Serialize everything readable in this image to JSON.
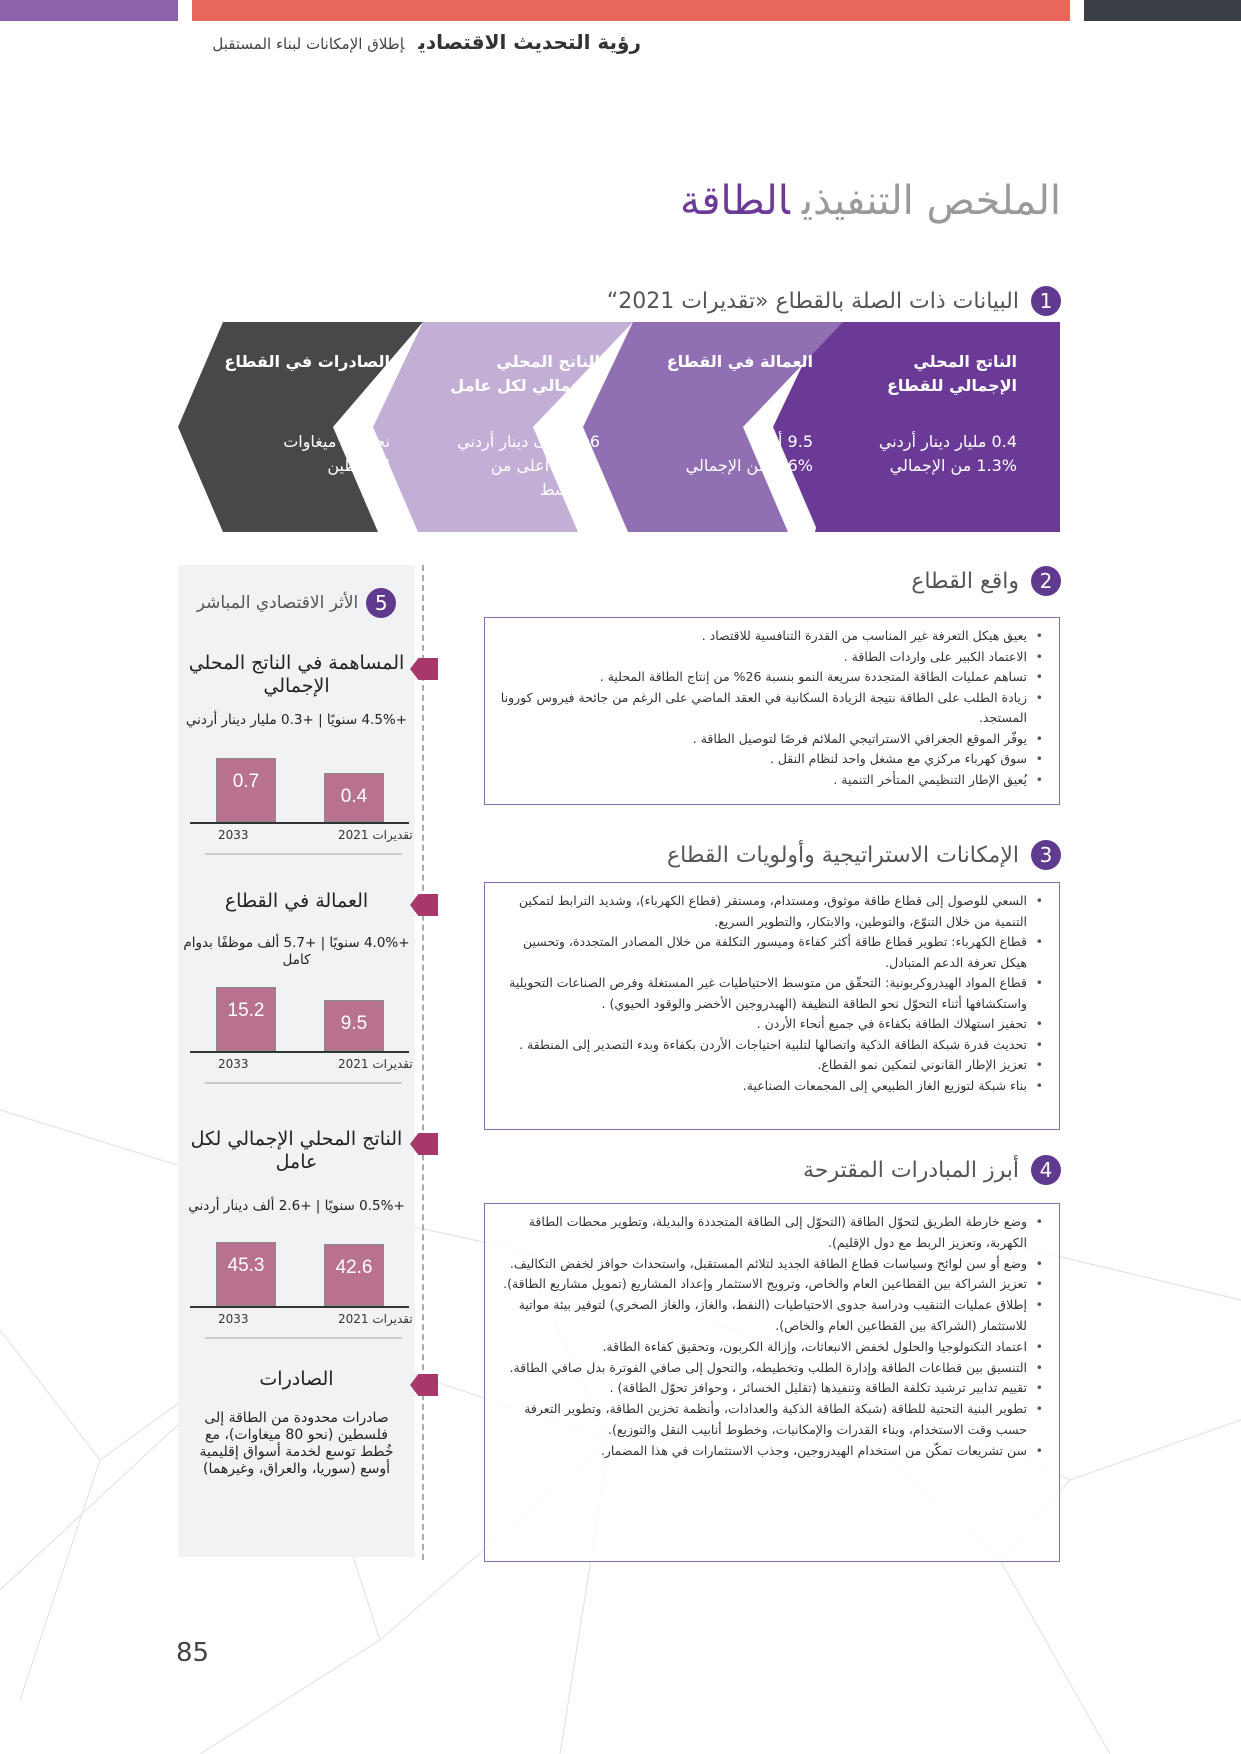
{
  "header": {
    "brand": "رؤية التحديث الاقتصادي",
    "tagline": "إطلاق الإمكانات لبناء المستقبل"
  },
  "colors": {
    "purple": "#6b3a96",
    "mid_purple": "#8e6bb0",
    "light_purple": "#c3aed6",
    "dark": "#48484a",
    "coral": "#e8675a",
    "bar": "#b8728f",
    "ribbon": "#a8386a"
  },
  "title": {
    "part1": "الملخص التنفيذي",
    "part2": "الطاقة"
  },
  "section1": {
    "num": "1",
    "heading": "البيانات ذات الصلة بالقطاع «تقديرات 2021“",
    "cards": [
      {
        "title": "الناتج المحلي الإجمالي للقطاع",
        "line1": "0.4 مليار دينار أردني",
        "line2": "1.3% من الإجمالي"
      },
      {
        "title": "العمالة في القطاع",
        "line1": "9.5 ألف",
        "line2": "0.6% من الإجمالي"
      },
      {
        "title": "الناتج المحلي الإجمالي لكل عامل",
        "line1": "42.6 ألف دينار أردني",
        "line2": "125% أعلى من المتوسط"
      },
      {
        "title": "الصادرات في القطاع",
        "line1": "نحو 80 ميغاوات لفلسطين",
        "line2": ""
      }
    ]
  },
  "section2": {
    "num": "2",
    "heading": "واقع القطاع",
    "items": [
      "يعيق هيكل التعرفة غير المناسب من القدرة التنافسية للاقتصاد .",
      "الاعتماد الكبير على واردات الطاقة .",
      "تساهم عمليات الطاقة المتجددة سريعة النمو بنسبة 26% من إنتاج الطاقة المحلية .",
      "زيادة الطلب على الطاقة نتيجة الزيادة السكانية في العقد الماضي على الرغم من جائحة فيروس كورونا المستجد.",
      "يوفّر الموقع الجغرافي الاستراتيجي الملائم فرصًا لتوصيل الطاقة .",
      "سوق كهرباء مركزي مع مشغل واحد لنظام النقل .",
      "يُعيق الإطار التنظيمي المتأخر التنمية ."
    ]
  },
  "section3": {
    "num": "3",
    "heading": "الإمكانات الاستراتيجية وأولويات القطاع",
    "items": [
      "السعي للوصول إلى قطاع طاقة موثوق، ومستدام، ومستقر (قطاع الكهرباء)، وشديد الترابط لتمكين التنمية من خلال التنوّع، والتوطين، والابتكار، والتطوير السريع.",
      "قطاع الكهرباء: تطوير قطاع طاقة أكثر كفاءة وميسور التكلفة من خلال المصادر المتجددة، وتحسين هيكل تعرفة الدعم المتبادل.",
      "قطاع المواد الهيدروكربونية: التحقّق من متوسط الاحتياطيات غير المستغلة وفرص الصناعات التحويلية واستكشافها أثناء التحوّل نحو الطاقة النظيفة (الهيدروجين الأخضر والوقود الحيوي) .",
      "تحفيز استهلاك الطاقة بكفاءة في جميع أنحاء الأردن .",
      "تحديث قدرة شبكة الطاقة الذكية واتصالها لتلبية احتياجات الأردن بكفاءة وبدء التصدير إلى المنطقة .",
      "تعزيز الإطار القانوني لتمكين نمو القطاع.",
      "بناء شبكة لتوزيع الغاز الطبيعي إلى المجمعات الصناعية."
    ]
  },
  "section4": {
    "num": "4",
    "heading": "أبرز المبادرات المقترحة",
    "items": [
      "وضع خارطة الطريق لتحوّل الطاقة (التحوّل إلى الطاقة المتجددة والبديلة، وتطوير محطات الطاقة الكهربة، وتعزيز الربط مع دول الإقليم).",
      "وضع أو سن لوائح وسياسات قطاع الطاقة الجديد لتلائم المستقبل، واستحداث حوافز لخفض التكاليف.",
      "تعزيز الشراكة بين القطاعين العام والخاص، وترويج الاستثمار وإعداد المشاريع (تمويل مشاريع الطاقة).",
      "إطلاق عمليات التنقيب ودراسة جدوى الاحتياطيات (النفط، والغاز، والغاز الصخري) لتوفير بيئة مواتية للاستثمار (الشراكة بين القطاعين العام والخاص).",
      "اعتماد التكنولوجيا والحلول لخفض الانبعاثات، وإزالة الكربون، وتحقيق كفاءة الطاقة.",
      "التنسيق بين قطاعات الطاقة وإدارة الطلب وتخطيطه، والتحول إلى صافي الفوترة بدل صافي الطاقة.",
      "تقييم تدابير ترشيد تكلفة الطاقة وتنفيذها (تقليل الخسائر ، وحوافز تحوّل الطاقة) .",
      "تطوير البنية التحتية للطاقة (شبكة الطاقة الذكية والعدادات، وأنظمة تخزين الطاقة، وتطوير التعرفة حسب وقت الاستخدام، وبناء القدرات والإمكانيات، وخطوط أنابيب النقل والتوزيع).",
      "سن تشريعات تمكّن من استخدام الهيدروجين، وجذب الاستثمارات في هذا المضمار."
    ]
  },
  "section5": {
    "num": "5",
    "heading": "الأثر الاقتصادي المباشر",
    "blocks": [
      {
        "title": "المساهمة في الناتج المحلي الإجمالي",
        "sub": "+4.5% سنويًا | +0.3 مليار دينار أردني",
        "v2033": 0.7,
        "v2021": 0.4,
        "label2033": "2033",
        "label2021": "تقديرات 2021"
      },
      {
        "title": "العمالة في القطاع",
        "sub": "+4.0% سنويًا | +5.7 ألف موظفًا بدوام كامل",
        "v2033": 15.2,
        "v2021": 9.5,
        "label2033": "2033",
        "label2021": "تقديرات 2021"
      },
      {
        "title": "الناتج المحلي الإجمالي لكل عامل",
        "sub": "+0.5% سنويًا | +2.6 ألف دينار أردني",
        "v2033": 45.3,
        "v2021": 42.6,
        "label2033": "2033",
        "label2021": "تقديرات 2021"
      }
    ],
    "exports": {
      "title": "الصادرات",
      "text": "صادرات محدودة من الطاقة إلى فلسطين (نحو 80 ميغاوات)، مع خُطط توسع لخدمة أسواق إقليمية أوسع (سوريا، والعراق، وغيرهما)"
    }
  },
  "page_number": "85"
}
